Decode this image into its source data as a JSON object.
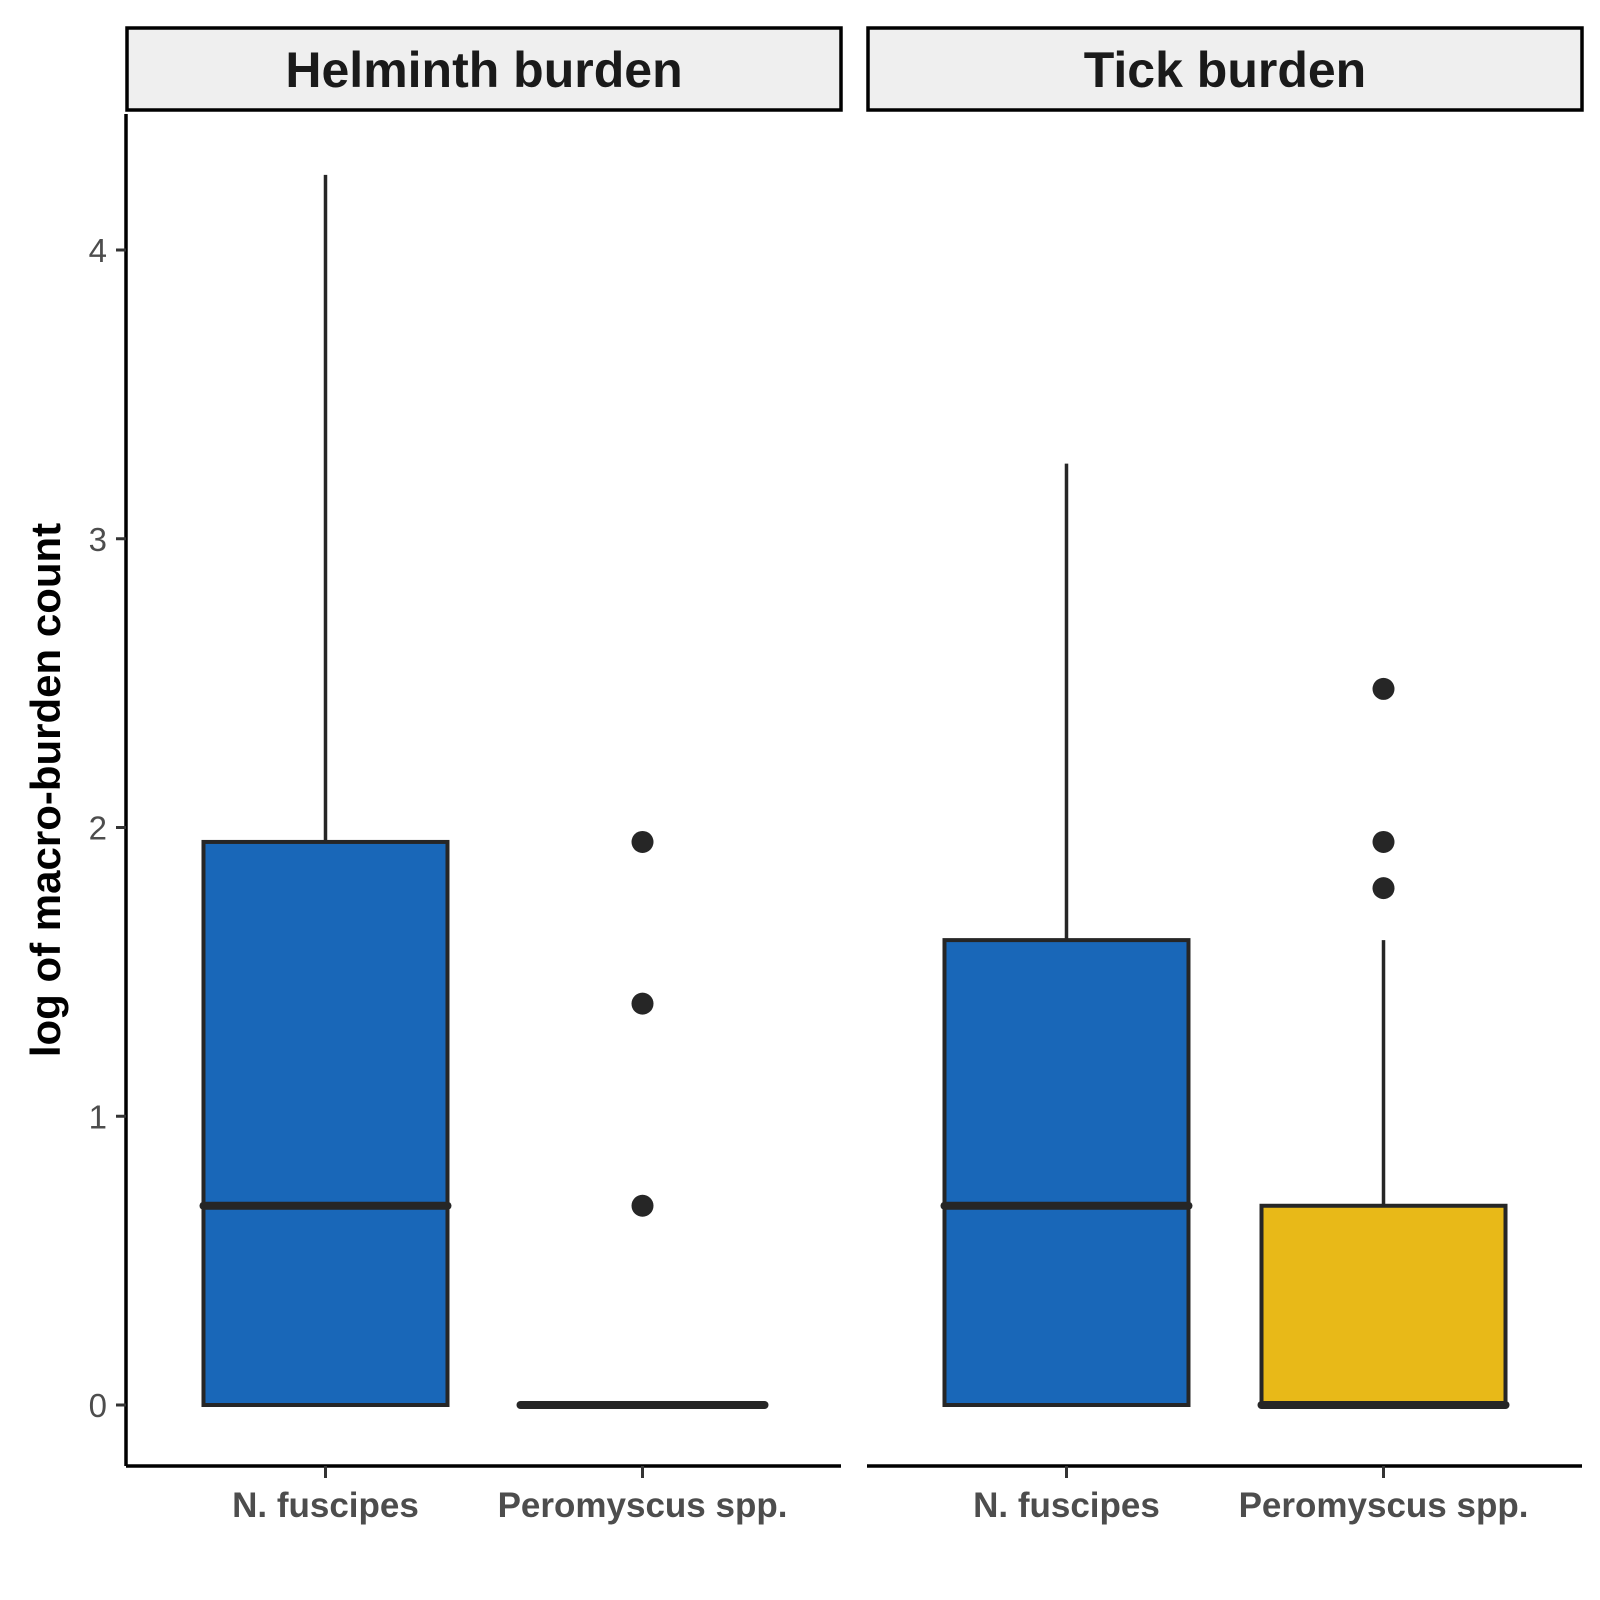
{
  "chart_data": {
    "type": "box",
    "ylabel": "log of macro-burden count",
    "xlabel": "",
    "ylim": [
      -0.21,
      4.45
    ],
    "yticks": [
      0,
      1,
      2,
      3,
      4
    ],
    "categories": [
      "N. fuscipes",
      "Peromyscus spp."
    ],
    "grid": false,
    "colors": {
      "N. fuscipes": "#1967b8",
      "Peromyscus spp.": "#e8b918",
      "outline": "#262626",
      "strip_bg": "#efefef"
    },
    "panels": [
      {
        "title": "Helminth burden",
        "boxes": [
          {
            "category": "N. fuscipes",
            "min": 0,
            "q1": 0,
            "median": 0.69,
            "q3": 1.95,
            "max": 4.26,
            "outliers": []
          },
          {
            "category": "Peromyscus spp.",
            "min": 0,
            "q1": 0,
            "median": 0,
            "q3": 0,
            "max": 0,
            "outliers": [
              1.95,
              1.39,
              0.69
            ]
          }
        ]
      },
      {
        "title": "Tick burden",
        "boxes": [
          {
            "category": "N. fuscipes",
            "min": 0,
            "q1": 0,
            "median": 0.69,
            "q3": 1.61,
            "max": 3.26,
            "outliers": []
          },
          {
            "category": "Peromyscus spp.",
            "min": 0,
            "q1": 0,
            "median": 0,
            "q3": 0.69,
            "max": 1.61,
            "outliers": [
              2.48,
              1.95,
              1.79
            ]
          }
        ]
      }
    ]
  }
}
